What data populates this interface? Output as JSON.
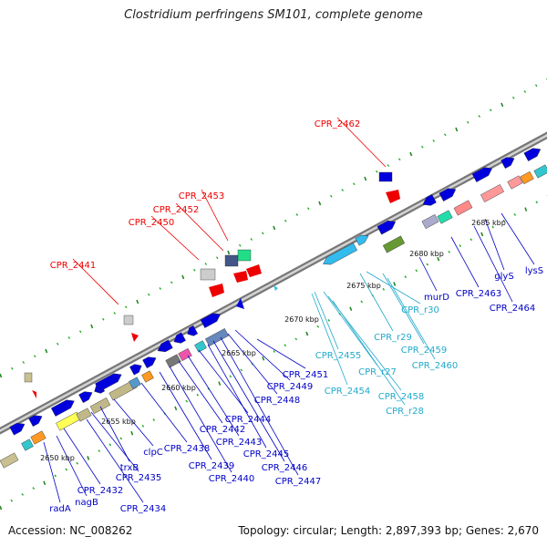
{
  "title": "Clostridium perfringens SM101, complete genome",
  "accession": "Accession: NC_008262",
  "summary": "Topology: circular; Length: 2,897,393 bp; Genes: 2,670",
  "colors": {
    "backbone_dark": "#777777",
    "backbone_light": "#d4d4d4",
    "gene_blue": "#0000dd",
    "gene_label_blue": "#0000c8",
    "rna_cyan": "#33bbee",
    "rna_label_cyan": "#22aacc",
    "highlight_red": "#ee0000",
    "tick_green": "#228822",
    "dot_green": "#22aa22"
  },
  "ticks": [
    "2650 kbp",
    "2655 kbp",
    "2660 kbp",
    "2665 kbp",
    "2670 kbp",
    "2675 kbp",
    "2680 kbp",
    "2685 kbp"
  ],
  "highlighted_genes": [
    "CPR_2462",
    "CPR_2453",
    "CPR_2452",
    "CPR_2450",
    "CPR_2441"
  ],
  "gene_labels": [
    "radA",
    "nagB",
    "CPR_2432",
    "CPR_2434",
    "CPR_2435",
    "trxB",
    "clpC",
    "CPR_2438",
    "CPR_2439",
    "CPR_2440",
    "CPR_2442",
    "CPR_2443",
    "CPR_2444",
    "CPR_2445",
    "CPR_2446",
    "CPR_2447",
    "CPR_2448",
    "CPR_2449",
    "CPR_2451",
    "murD",
    "CPR_2463",
    "CPR_2464",
    "glyS",
    "lysS"
  ],
  "rna_labels": [
    "CPR_r30",
    "CPR_r29",
    "CPR_2455",
    "CPR_r27",
    "CPR_2454",
    "CPR_2458",
    "CPR_r28",
    "CPR_2459",
    "CPR_2460"
  ]
}
